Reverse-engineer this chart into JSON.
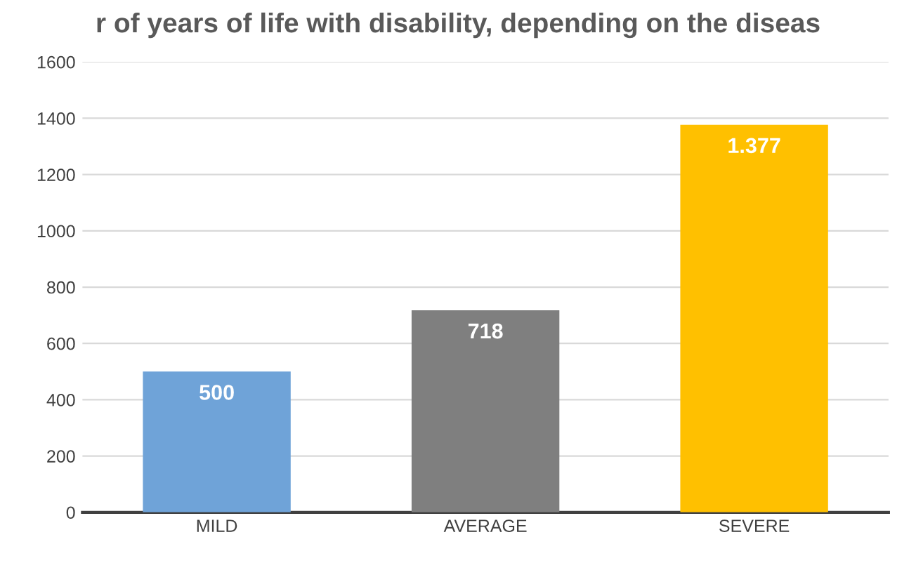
{
  "chart_data": {
    "type": "bar",
    "title": "r of years of life with disability, depending on the diseas",
    "categories": [
      "MILD",
      "AVERAGE",
      "SEVERE"
    ],
    "values": [
      500,
      718,
      1377
    ],
    "colors": [
      "#6fa3d8",
      "#7f7f7f",
      "#ffc000"
    ],
    "value_labels": [
      "500",
      "718",
      "1.377"
    ],
    "ylim": [
      0,
      1600
    ],
    "yticks": [
      0,
      200,
      400,
      600,
      800,
      1000,
      1200,
      1400,
      1600
    ],
    "grid": "y"
  }
}
